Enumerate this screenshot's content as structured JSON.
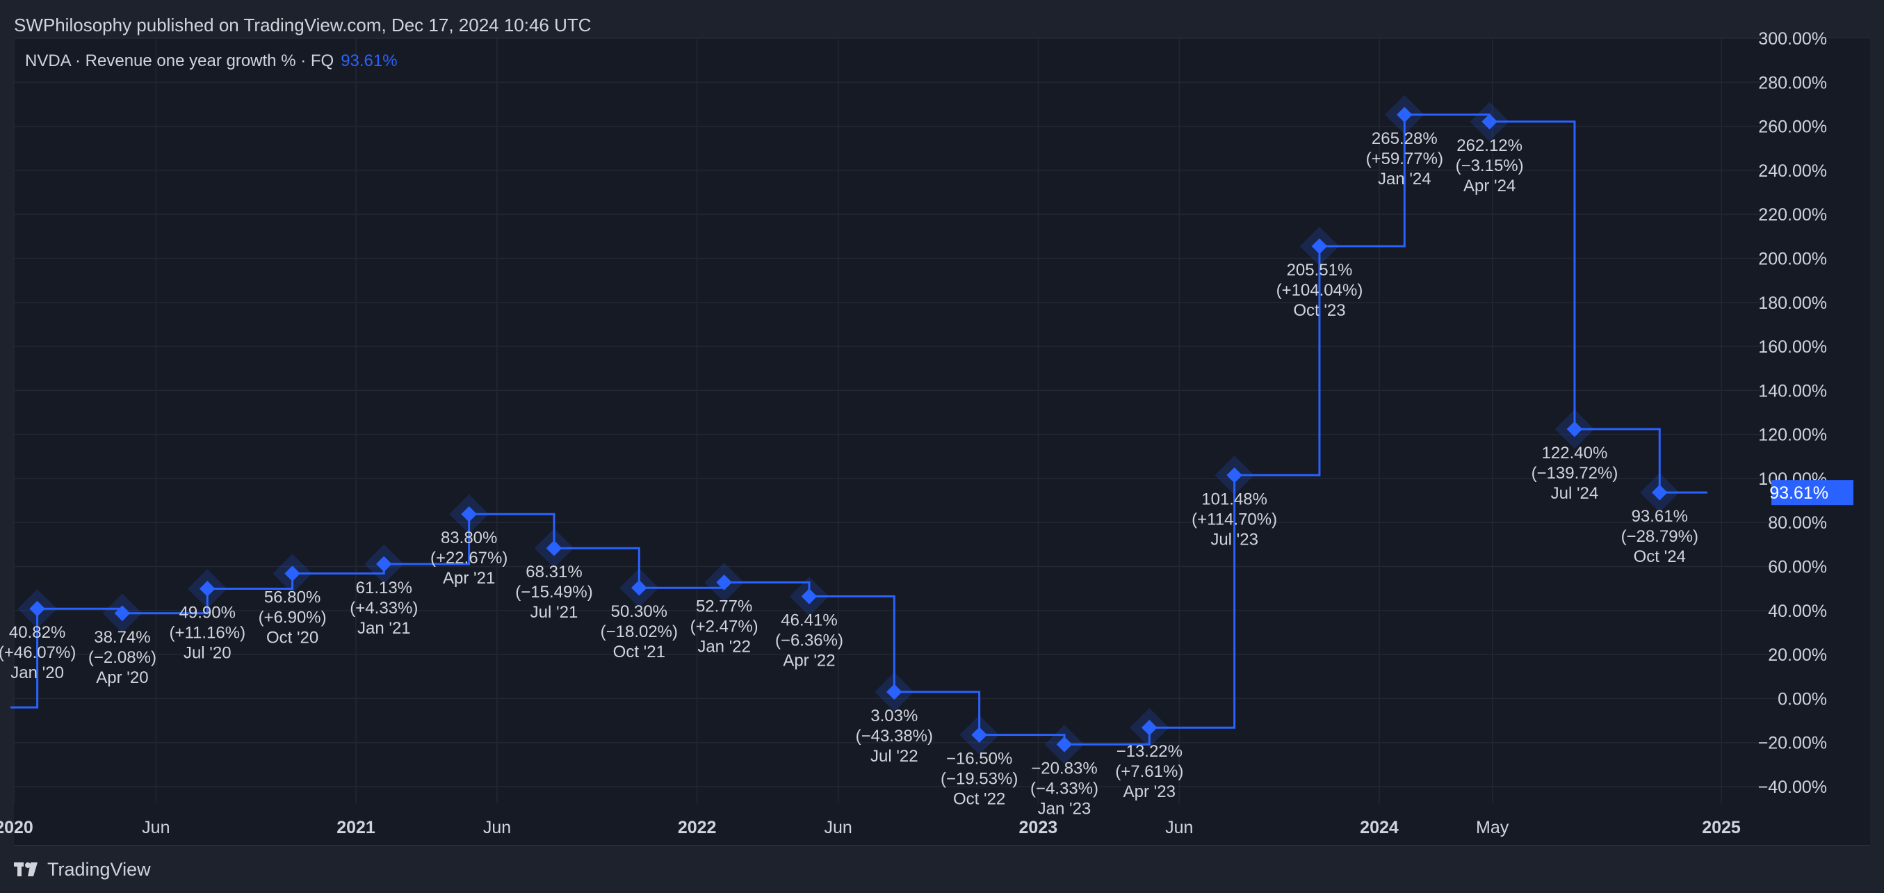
{
  "header": {
    "publisher": "SWPhilosophy published on TradingView.com, Dec 17, 2024 10:46 UTC"
  },
  "legend": {
    "text": "NVDA · Revenue one year growth % · FQ",
    "value": "93.61%"
  },
  "footer": {
    "brand": "TradingView",
    "logo_icon": "tradingview-logo-icon"
  },
  "colors": {
    "line": "#2962ff",
    "background": "#161a25",
    "grid": "#232734",
    "text": "#d1d4dc",
    "badge_bg": "#2962ff"
  },
  "chart_data": {
    "type": "line",
    "step": true,
    "title": "",
    "xlabel": "",
    "ylabel": "",
    "ylim": [
      -40,
      300
    ],
    "grid": true,
    "y_ticks": [
      "300.00%",
      "280.00%",
      "260.00%",
      "240.00%",
      "220.00%",
      "200.00%",
      "180.00%",
      "160.00%",
      "140.00%",
      "120.00%",
      "100.00%",
      "80.00%",
      "60.00%",
      "40.00%",
      "20.00%",
      "0.00%",
      "−20.00%",
      "−40.00%"
    ],
    "y_tick_values": [
      300,
      280,
      260,
      240,
      220,
      200,
      180,
      160,
      140,
      120,
      100,
      80,
      60,
      40,
      20,
      0,
      -20,
      -40
    ],
    "x_ticks": [
      {
        "label": "2020",
        "date": "2020-01-01",
        "bold": true
      },
      {
        "label": "Jun",
        "date": "2020-06-01",
        "bold": false
      },
      {
        "label": "2021",
        "date": "2021-01-01",
        "bold": true
      },
      {
        "label": "Jun",
        "date": "2021-06-01",
        "bold": false
      },
      {
        "label": "2022",
        "date": "2022-01-01",
        "bold": true
      },
      {
        "label": "Jun",
        "date": "2022-06-01",
        "bold": false
      },
      {
        "label": "2023",
        "date": "2023-01-01",
        "bold": true
      },
      {
        "label": "Jun",
        "date": "2023-06-01",
        "bold": false
      },
      {
        "label": "2024",
        "date": "2024-01-01",
        "bold": true
      },
      {
        "label": "May",
        "date": "2024-05-01",
        "bold": false
      },
      {
        "label": "2025",
        "date": "2025-01-01",
        "bold": true
      }
    ],
    "start": {
      "date": "2019-10-27",
      "value": -4
    },
    "last_value_badge": "93.61%",
    "end_date": "2024-12-17",
    "points": [
      {
        "date": "2020-01-26",
        "value": 40.82,
        "label": "40.82%",
        "change": "(+46.07%)",
        "period": "Jan '20"
      },
      {
        "date": "2020-04-26",
        "value": 38.74,
        "label": "38.74%",
        "change": "(−2.08%)",
        "period": "Apr '20"
      },
      {
        "date": "2020-07-26",
        "value": 49.9,
        "label": "49.90%",
        "change": "(+11.16%)",
        "period": "Jul '20"
      },
      {
        "date": "2020-10-25",
        "value": 56.8,
        "label": "56.80%",
        "change": "(+6.90%)",
        "period": "Oct '20"
      },
      {
        "date": "2021-01-31",
        "value": 61.13,
        "label": "61.13%",
        "change": "(+4.33%)",
        "period": "Jan '21"
      },
      {
        "date": "2021-05-02",
        "value": 83.8,
        "label": "83.80%",
        "change": "(+22.67%)",
        "period": "Apr '21"
      },
      {
        "date": "2021-08-01",
        "value": 68.31,
        "label": "68.31%",
        "change": "(−15.49%)",
        "period": "Jul '21"
      },
      {
        "date": "2021-10-31",
        "value": 50.3,
        "label": "50.30%",
        "change": "(−18.02%)",
        "period": "Oct '21"
      },
      {
        "date": "2022-01-30",
        "value": 52.77,
        "label": "52.77%",
        "change": "(+2.47%)",
        "period": "Jan '22"
      },
      {
        "date": "2022-05-01",
        "value": 46.41,
        "label": "46.41%",
        "change": "(−6.36%)",
        "period": "Apr '22"
      },
      {
        "date": "2022-07-31",
        "value": 3.03,
        "label": "3.03%",
        "change": "(−43.38%)",
        "period": "Jul '22"
      },
      {
        "date": "2022-10-30",
        "value": -16.5,
        "label": "−16.50%",
        "change": "(−19.53%)",
        "period": "Oct '22"
      },
      {
        "date": "2023-01-29",
        "value": -20.83,
        "label": "−20.83%",
        "change": "(−4.33%)",
        "period": "Jan '23"
      },
      {
        "date": "2023-04-30",
        "value": -13.22,
        "label": "−13.22%",
        "change": "(+7.61%)",
        "period": "Apr '23"
      },
      {
        "date": "2023-07-30",
        "value": 101.48,
        "label": "101.48%",
        "change": "(+114.70%)",
        "period": "Jul '23"
      },
      {
        "date": "2023-10-29",
        "value": 205.51,
        "label": "205.51%",
        "change": "(+104.04%)",
        "period": "Oct '23"
      },
      {
        "date": "2024-01-28",
        "value": 265.28,
        "label": "265.28%",
        "change": "(+59.77%)",
        "period": "Jan '24"
      },
      {
        "date": "2024-04-28",
        "value": 262.12,
        "label": "262.12%",
        "change": "(−3.15%)",
        "period": "Apr '24"
      },
      {
        "date": "2024-07-28",
        "value": 122.4,
        "label": "122.40%",
        "change": "(−139.72%)",
        "period": "Jul '24"
      },
      {
        "date": "2024-10-27",
        "value": 93.61,
        "label": "93.61%",
        "change": "(−28.79%)",
        "period": "Oct '24"
      }
    ]
  }
}
